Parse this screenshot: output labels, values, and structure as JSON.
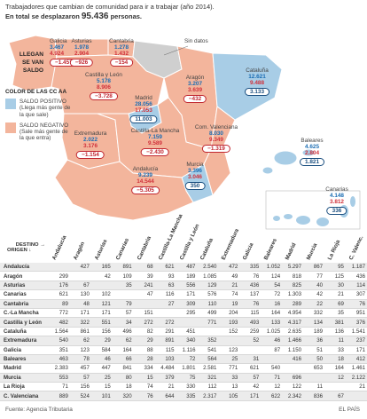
{
  "header": {
    "title": "Trabajadores que cambian de comunidad para ir a trabajar (año 2014).",
    "subtitle_prefix": "En total se desplazaron",
    "subtitle_total": "95.436",
    "subtitle_suffix": "personas."
  },
  "map": {
    "key": {
      "arrive": "LLEGAN",
      "leave": "SE VAN",
      "balance": "SALDO"
    },
    "no_data": "Sin datos",
    "color_legend": {
      "title": "COLOR DE LAS CC AA",
      "positive": {
        "label": "SALDO POSITIVO",
        "note": "(Llega más gente de la que sale)"
      },
      "negative": {
        "label": "SALDO NEGATIVO",
        "note": "(Sale más gente de la que entra)"
      }
    },
    "regions": [
      {
        "name": "Galicia",
        "arrive": "3.467",
        "leave": "4.924",
        "balance": "−1.457"
      },
      {
        "name": "Asturias",
        "arrive": "1.978",
        "leave": "2.904",
        "balance": "−926"
      },
      {
        "name": "Cantabria",
        "arrive": "1.278",
        "leave": "1.432",
        "balance": "−154"
      },
      {
        "name": "Castilla y León",
        "arrive": "5.178",
        "leave": "8.906",
        "balance": "−3.728"
      },
      {
        "name": "Aragón",
        "arrive": "3.207",
        "leave": "3.639",
        "balance": "−432"
      },
      {
        "name": "Cataluña",
        "arrive": "12.621",
        "leave": "9.488",
        "balance": "3.133"
      },
      {
        "name": "Madrid",
        "arrive": "28.056",
        "leave": "17.053",
        "balance": "11.003"
      },
      {
        "name": "Extremadura",
        "arrive": "2.022",
        "leave": "3.176",
        "balance": "−1.154"
      },
      {
        "name": "Castilla-La Mancha",
        "arrive": "7.159",
        "leave": "9.589",
        "balance": "−2.430"
      },
      {
        "name": "Com. Valenciana",
        "arrive": "8.030",
        "leave": "9.349",
        "balance": "−1.319"
      },
      {
        "name": "Murcia",
        "arrive": "3.396",
        "leave": "3.046",
        "balance": "350"
      },
      {
        "name": "Andalucía",
        "arrive": "9.239",
        "leave": "14.544",
        "balance": "−5.305"
      },
      {
        "name": "Baleares",
        "arrive": "4.625",
        "leave": "2.804",
        "balance": "1.821"
      },
      {
        "name": "Canarias",
        "arrive": "4.148",
        "leave": "3.812",
        "balance": "336"
      }
    ]
  },
  "table": {
    "dest_label": "DESTINO",
    "origin_label": "ORIGEN",
    "columns": [
      "Andalucía",
      "Aragón",
      "Asturias",
      "Canarias",
      "Cantabria",
      "Castilla-La Mancha",
      "Castilla y León",
      "Cataluña",
      "Extremadura",
      "Galicia",
      "Baleares",
      "Madrid",
      "Murcia",
      "La Rioja",
      "C. Valenc."
    ],
    "rows": [
      {
        "name": "Andalucía",
        "cells": [
          null,
          "427",
          "165",
          "891",
          "68",
          "621",
          "487",
          "2.540",
          "472",
          "335",
          "1.052",
          "5.297",
          "867",
          "95",
          "1.187"
        ]
      },
      {
        "name": "Aragón",
        "cells": [
          "299",
          null,
          "42",
          "109",
          "39",
          "93",
          "189",
          "1.085",
          "49",
          "76",
          "124",
          "818",
          "77",
          "125",
          "436"
        ]
      },
      {
        "name": "Asturias",
        "cells": [
          "176",
          "67",
          null,
          "35",
          "241",
          "63",
          "556",
          "129",
          "21",
          "436",
          "54",
          "825",
          "40",
          "30",
          "114"
        ]
      },
      {
        "name": "Canarias",
        "cells": [
          "621",
          "130",
          "102",
          null,
          "47",
          "116",
          "171",
          "576",
          "74",
          "137",
          "72",
          "1.303",
          "42",
          "21",
          "307"
        ]
      },
      {
        "name": "Cantabria",
        "cells": [
          "89",
          "48",
          "121",
          "79",
          null,
          "27",
          "309",
          "110",
          "19",
          "76",
          "16",
          "289",
          "22",
          "69",
          "76"
        ]
      },
      {
        "name": "C.-La Mancha",
        "cells": [
          "772",
          "171",
          "171",
          "57",
          "151",
          null,
          "295",
          "499",
          "204",
          "115",
          "164",
          "4.954",
          "332",
          "35",
          "951"
        ]
      },
      {
        "name": "Castilla y León",
        "cells": [
          "482",
          "322",
          "551",
          "34",
          "272",
          "272",
          null,
          "771",
          "193",
          "493",
          "133",
          "4.317",
          "134",
          "381",
          "376"
        ]
      },
      {
        "name": "Cataluña",
        "cells": [
          "1.564",
          "861",
          "156",
          "496",
          "82",
          "291",
          "451",
          null,
          "152",
          "259",
          "1.025",
          "2.635",
          "189",
          "136",
          "1.541"
        ]
      },
      {
        "name": "Extremadura",
        "cells": [
          "540",
          "62",
          "29",
          "62",
          "29",
          "891",
          "340",
          "352",
          null,
          "52",
          "46",
          "1.466",
          "36",
          "11",
          "237"
        ]
      },
      {
        "name": "Galicia",
        "cells": [
          "351",
          "123",
          "584",
          "164",
          "88",
          "115",
          "1.116",
          "541",
          "123",
          null,
          "87",
          "1.150",
          "51",
          "33",
          "171"
        ]
      },
      {
        "name": "Baleares",
        "cells": [
          "463",
          "78",
          "46",
          "66",
          "28",
          "103",
          "72",
          "564",
          "25",
          "31",
          null,
          "416",
          "50",
          "18",
          "412"
        ]
      },
      {
        "name": "Madrid",
        "cells": [
          "2.383",
          "457",
          "447",
          "841",
          "334",
          "4.484",
          "1.801",
          "2.581",
          "771",
          "621",
          "540",
          null,
          "653",
          "164",
          "1.461"
        ]
      },
      {
        "name": "Murcia",
        "cells": [
          "553",
          "57",
          "25",
          "80",
          "15",
          "379",
          "75",
          "321",
          "33",
          "57",
          "71",
          "696",
          null,
          "12",
          "2.122"
        ]
      },
      {
        "name": "La Rioja",
        "cells": [
          "71",
          "156",
          "15",
          "18",
          "74",
          "21",
          "330",
          "112",
          "13",
          "42",
          "12",
          "122",
          "11",
          null,
          "21"
        ]
      },
      {
        "name": "C. Valenciana",
        "cells": [
          "889",
          "524",
          "101",
          "320",
          "76",
          "644",
          "335",
          "2.317",
          "105",
          "171",
          "622",
          "2.342",
          "836",
          "67",
          null
        ]
      }
    ]
  },
  "footer": {
    "source": "Fuente: Agencia Tributaria",
    "brand": "EL PAÍS"
  }
}
